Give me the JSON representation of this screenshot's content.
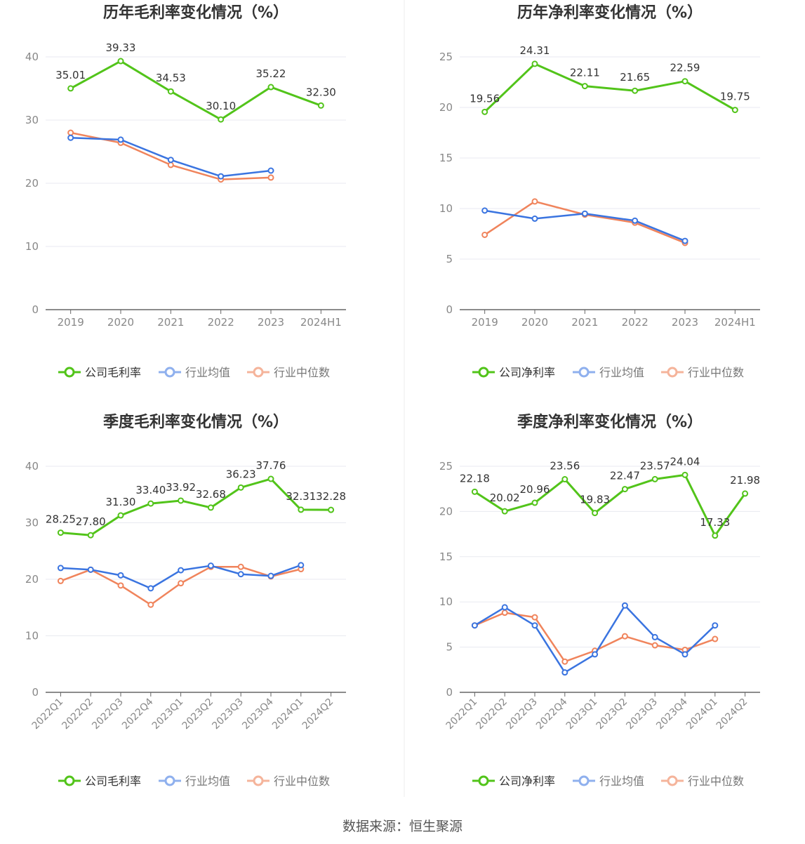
{
  "source": "数据来源：恒生聚源",
  "colors": {
    "company": "#52c41a",
    "avg": "#3a74e0",
    "median": "#f0845c",
    "grid": "#e8eaf0",
    "axis": "#888888",
    "title": "#333333"
  },
  "chart_data": [
    {
      "type": "line",
      "title": "历年毛利率变化情况（%）",
      "categories": [
        "2019",
        "2020",
        "2021",
        "2022",
        "2023",
        "2024H1"
      ],
      "ylim": [
        0,
        40
      ],
      "yticks": [
        0,
        10,
        20,
        30,
        40
      ],
      "legend": "bottom-center",
      "grid": true,
      "series": [
        {
          "name": "公司毛利率",
          "values": [
            35.01,
            39.33,
            34.53,
            30.1,
            35.22,
            32.3
          ],
          "labels": [
            "35.01",
            "39.33",
            "34.53",
            "30.10",
            "35.22",
            "32.30"
          ]
        },
        {
          "name": "行业均值",
          "values": [
            27.2,
            26.9,
            23.7,
            21.1,
            22.0,
            null
          ]
        },
        {
          "name": "行业中位数",
          "values": [
            28.0,
            26.4,
            22.9,
            20.6,
            20.9,
            null
          ]
        }
      ]
    },
    {
      "type": "line",
      "title": "历年净利率变化情况（%）",
      "categories": [
        "2019",
        "2020",
        "2021",
        "2022",
        "2023",
        "2024H1"
      ],
      "ylim": [
        0,
        25
      ],
      "yticks": [
        0,
        5,
        10,
        15,
        20,
        25
      ],
      "legend": "bottom-center",
      "grid": true,
      "series": [
        {
          "name": "公司净利率",
          "values": [
            19.56,
            24.31,
            22.11,
            21.65,
            22.59,
            19.75
          ],
          "labels": [
            "19.56",
            "24.31",
            "22.11",
            "21.65",
            "22.59",
            "19.75"
          ]
        },
        {
          "name": "行业均值",
          "values": [
            9.8,
            9.0,
            9.5,
            8.8,
            6.8,
            null
          ]
        },
        {
          "name": "行业中位数",
          "values": [
            7.4,
            10.7,
            9.4,
            8.6,
            6.6,
            null
          ]
        }
      ]
    },
    {
      "type": "line",
      "title": "季度毛利率变化情况（%）",
      "categories": [
        "2022Q1",
        "2022Q2",
        "2022Q3",
        "2022Q4",
        "2023Q1",
        "2023Q2",
        "2023Q3",
        "2023Q4",
        "2024Q1",
        "2024Q2"
      ],
      "ylim": [
        0,
        40
      ],
      "yticks": [
        0,
        10,
        20,
        30,
        40
      ],
      "legend": "bottom-center",
      "grid": true,
      "series": [
        {
          "name": "公司毛利率",
          "values": [
            28.25,
            27.8,
            31.3,
            33.4,
            33.92,
            32.68,
            36.23,
            37.76,
            32.31,
            32.28
          ],
          "labels": [
            "28.25",
            "27.80",
            "31.30",
            "33.40",
            "33.92",
            "32.68",
            "36.23",
            "37.76",
            "32.31",
            "32.28"
          ]
        },
        {
          "name": "行业均值",
          "values": [
            22.0,
            21.7,
            20.7,
            18.4,
            21.6,
            22.4,
            20.9,
            20.6,
            22.5,
            null
          ]
        },
        {
          "name": "行业中位数",
          "values": [
            19.7,
            21.7,
            18.9,
            15.5,
            19.3,
            22.2,
            22.2,
            20.5,
            21.8,
            null
          ]
        }
      ]
    },
    {
      "type": "line",
      "title": "季度净利率变化情况（%）",
      "categories": [
        "2022Q1",
        "2022Q2",
        "2022Q3",
        "2022Q4",
        "2023Q1",
        "2023Q2",
        "2023Q3",
        "2023Q4",
        "2024Q1",
        "2024Q2"
      ],
      "ylim": [
        0,
        25
      ],
      "yticks": [
        0,
        5,
        10,
        15,
        20,
        25
      ],
      "legend": "bottom-center",
      "grid": true,
      "series": [
        {
          "name": "公司净利率",
          "values": [
            22.18,
            20.02,
            20.96,
            23.56,
            19.83,
            22.47,
            23.57,
            24.04,
            17.33,
            21.98
          ],
          "labels": [
            "22.18",
            "20.02",
            "20.96",
            "23.56",
            "19.83",
            "22.47",
            "23.57",
            "24.04",
            "17.33",
            "21.98"
          ]
        },
        {
          "name": "行业均值",
          "values": [
            7.4,
            9.4,
            7.4,
            2.2,
            4.2,
            9.6,
            6.1,
            4.2,
            7.4,
            null
          ]
        },
        {
          "name": "行业中位数",
          "values": [
            7.4,
            8.8,
            8.3,
            3.4,
            4.6,
            6.2,
            5.2,
            4.7,
            5.9,
            null
          ]
        }
      ]
    }
  ]
}
